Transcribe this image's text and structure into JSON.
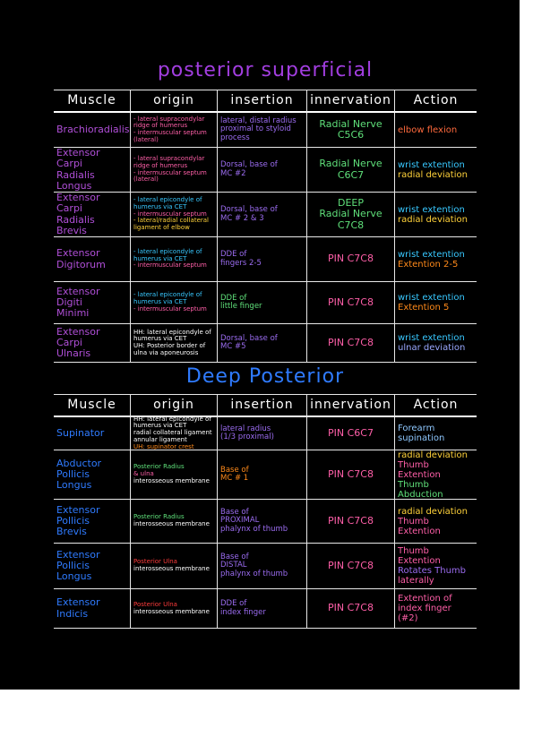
{
  "sections": [
    {
      "title": "posterior superficial",
      "headers": [
        "Muscle",
        "origin",
        "insertion",
        "innervation",
        "Action"
      ],
      "rows": [
        [
          [
            "Brachioradialis"
          ],
          [
            "- lateral supracondylar ridge of humerus",
            "- intermuscular septum (lateral)"
          ],
          [
            "lateral, distal radius proximal to styloid process"
          ],
          [
            "Radial Nerve",
            "C5C6"
          ],
          [
            "elbow flexion"
          ]
        ],
        [
          [
            "Extensor Carpi",
            "Radialis Longus"
          ],
          [
            "- lateral supracondylar ridge of humerus",
            "- intermuscular septum (lateral)"
          ],
          [
            "Dorsal, base of",
            "MC #2"
          ],
          [
            "Radial Nerve",
            "C6C7"
          ],
          [
            "wrist extention",
            "radial deviation"
          ]
        ],
        [
          [
            "Extensor Carpi",
            "Radialis Brevis"
          ],
          [
            "- lateral epicondyle of humerus via CET",
            "- intermuscular septum",
            "- lateral/radial collateral ligament of elbow"
          ],
          [
            "Dorsal, base of",
            "MC # 2 & 3"
          ],
          [
            "DEEP",
            "Radial Nerve",
            "C7C8"
          ],
          [
            "wrist extention",
            "radial deviation"
          ]
        ],
        [
          [
            "Extensor",
            "Digitorum"
          ],
          [
            "- lateral epicondyle of humerus via CET",
            "- intermuscular septum"
          ],
          [
            "DDE of",
            "fingers 2-5"
          ],
          [
            "PIN C7C8"
          ],
          [
            "wrist extention",
            "Extention 2-5"
          ]
        ],
        [
          [
            "Extensor Digiti",
            "Minimi"
          ],
          [
            "- lateral epicondyle of humerus via CET",
            "- intermuscular septum"
          ],
          [
            "DDE of",
            "little finger"
          ],
          [
            "PIN C7C8"
          ],
          [
            "wrist extention",
            "Extention 5"
          ]
        ],
        [
          [
            "Extensor Carpi",
            "Ulnaris"
          ],
          [
            "HH: lateral epicondyle of humerus via CET",
            "UH: Posterior border of ulna via aponeurosis"
          ],
          [
            "Dorsal, base of",
            "MC #5"
          ],
          [
            "PIN C7C8"
          ],
          [
            "wrist extention",
            "ulnar deviation"
          ]
        ]
      ]
    },
    {
      "title": "Deep Posterior",
      "headers": [
        "Muscle",
        "origin",
        "insertion",
        "innervation",
        "Action"
      ],
      "rows": [
        [
          [
            "Supinator"
          ],
          [
            "HH: lateral epicondyle of humerus via CET",
            "radial collateral ligament",
            "annular ligament",
            "UH: supinator crest"
          ],
          [
            "lateral radius",
            "(1/3 proximal)"
          ],
          [
            "PIN C6C7"
          ],
          [
            "Forearm",
            "supination"
          ]
        ],
        [
          [
            "Abductor",
            "Pollicis",
            "Longus"
          ],
          [
            "Posterior Radius",
            "& ulna",
            "interosseous membrane"
          ],
          [
            "Base of",
            "MC # 1"
          ],
          [
            "PIN C7C8"
          ],
          [
            "radial deviation",
            "Thumb Extention",
            "Thumb Abduction"
          ]
        ],
        [
          [
            "Extensor",
            "Pollicis",
            "Brevis"
          ],
          [
            "Posterior Radius",
            "interosseous membrane"
          ],
          [
            "Base of",
            "PROXIMAL",
            "phalynx of thumb"
          ],
          [
            "PIN C7C8"
          ],
          [
            "radial deviation",
            "Thumb Extention"
          ]
        ],
        [
          [
            "Extensor",
            "Pollicis",
            "Longus"
          ],
          [
            "Posterior Ulna",
            "interosseous membrane"
          ],
          [
            "Base of",
            "DISTAL",
            "phalynx of thumb"
          ],
          [
            "PIN C7C8"
          ],
          [
            "Thumb Extention",
            "Rotates Thumb",
            "laterally"
          ]
        ],
        [
          [
            "Extensor",
            "Indicis"
          ],
          [
            "Posterior Ulna",
            "interosseous membrane"
          ],
          [
            "DDE of",
            "index finger"
          ],
          [
            "PIN C7C8"
          ],
          [
            "Extention of index finger (#2)"
          ]
        ]
      ]
    }
  ]
}
